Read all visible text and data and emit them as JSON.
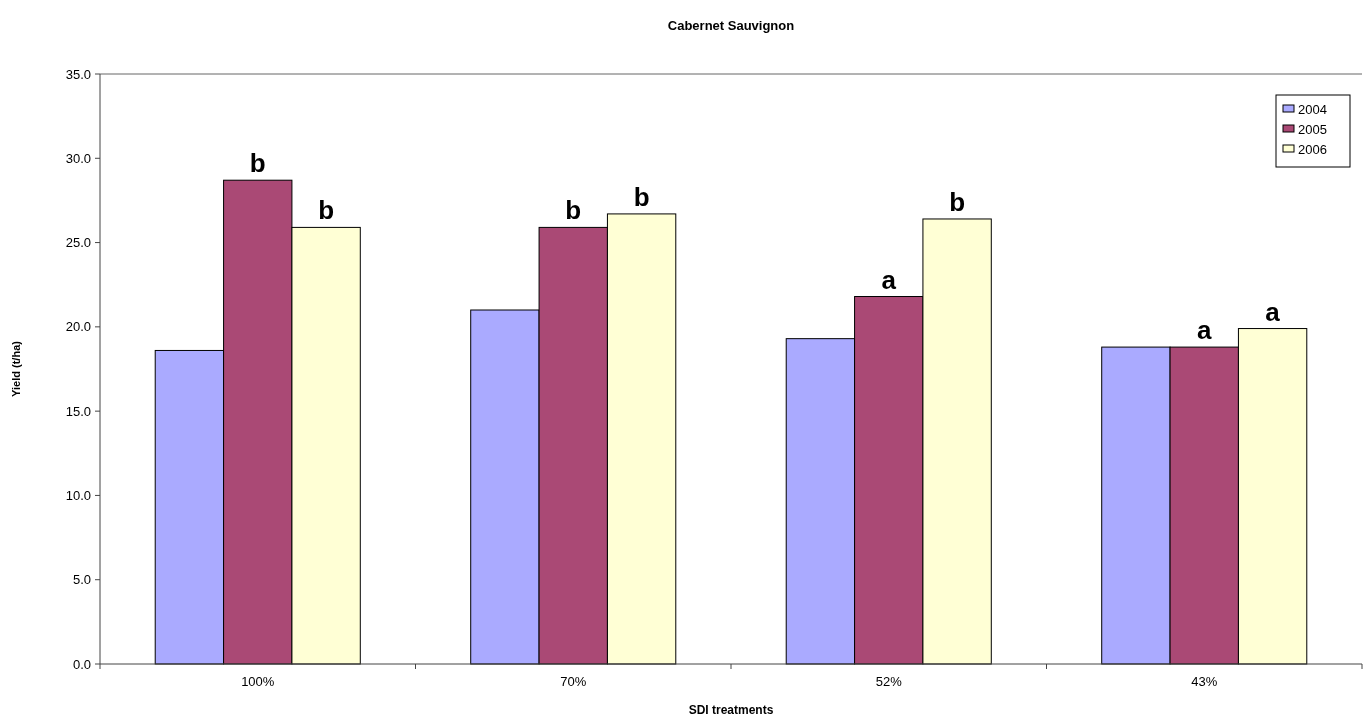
{
  "chart_data": {
    "type": "bar",
    "title": "Cabernet Sauvignon",
    "xlabel": "SDI treatments",
    "ylabel": "Yield (t/ha)",
    "categories": [
      "100%",
      "70%",
      "52%",
      "43%"
    ],
    "series": [
      {
        "name": "2004",
        "color": "#aaaaff",
        "values": [
          18.6,
          21.0,
          19.3,
          18.8
        ]
      },
      {
        "name": "2005",
        "color": "#aa4975",
        "values": [
          28.7,
          25.9,
          21.8,
          18.8
        ],
        "value_labels": [
          "b",
          "b",
          "a",
          "a"
        ]
      },
      {
        "name": "2006",
        "color": "#ffffd5",
        "values": [
          25.9,
          26.7,
          26.4,
          19.9
        ],
        "value_labels": [
          "b",
          "b",
          "b",
          "a"
        ]
      }
    ],
    "ylim": [
      0,
      35
    ],
    "yticks": [
      {
        "value": 0,
        "label": "0.0"
      },
      {
        "value": 5,
        "label": "5.0"
      },
      {
        "value": 10,
        "label": "10.0"
      },
      {
        "value": 15,
        "label": "15.0"
      },
      {
        "value": 20,
        "label": "20.0"
      },
      {
        "value": 25,
        "label": "25.0"
      },
      {
        "value": 30,
        "label": "30.0"
      },
      {
        "value": 35,
        "label": "35.0"
      }
    ],
    "legend": "top right",
    "grid": false
  }
}
